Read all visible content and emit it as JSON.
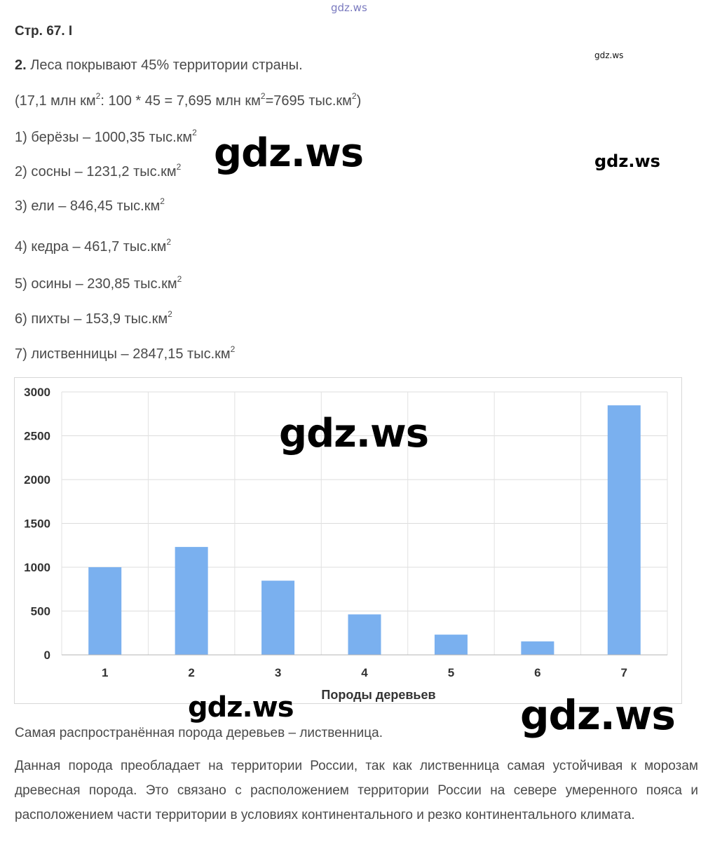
{
  "watermarks": {
    "top": "gdz.ws",
    "small": "gdz.ws",
    "big": "gdz.ws",
    "side": "gdz.ws",
    "chart": "gdz.ws",
    "low_left": "gdz.ws",
    "low_right": "gdz.ws"
  },
  "header": "Стр. 67. I",
  "task": {
    "number": "2.",
    "text": "Леса покрывают 45% территории страны.",
    "calc_parts": [
      "(17,1 млн км",
      "2",
      ": 100 * 45 = 7,695 млн км",
      "2",
      "=7695 тыс.км",
      "2",
      ")"
    ]
  },
  "items": [
    {
      "text": "1) берёзы – 1000,35 тыс.км",
      "sup": "2"
    },
    {
      "text": "2) сосны – 1231,2 тыс.км",
      "sup": "2"
    },
    {
      "text": "3) ели – 846,45 тыс.км",
      "sup": "2"
    },
    {
      "text": "4) кедра – 461,7 тыс.км",
      "sup": "2"
    },
    {
      "text": "5) осины – 230,85 тыс.км",
      "sup": "2"
    },
    {
      "text": "6) пихты – 153,9 тыс.км",
      "sup": "2"
    },
    {
      "text": "7) лиственницы – 2847,15 тыс.км",
      "sup": "2"
    }
  ],
  "chart_data": {
    "type": "bar",
    "categories": [
      "1",
      "2",
      "3",
      "4",
      "5",
      "6",
      "7"
    ],
    "values": [
      1000.35,
      1231.2,
      846.45,
      461.7,
      230.85,
      153.9,
      2847.15
    ],
    "title": "",
    "xlabel": "Породы деревьев",
    "ylabel": "",
    "ylim": [
      0,
      3000
    ],
    "yticks": [
      "0",
      "500",
      "1000",
      "1500",
      "2000",
      "2500",
      "3000"
    ],
    "grid": true,
    "bar_color": "#7ab0ef"
  },
  "conclusion": "Самая распространённая порода деревьев – лиственница.",
  "explanation": "Данная порода преобладает на территории России, так как лиственница самая устойчивая к морозам древесная порода. Это связано с расположением территории России на севере умеренного пояса и расположением части территории в условиях континентального и резко континентального климата."
}
